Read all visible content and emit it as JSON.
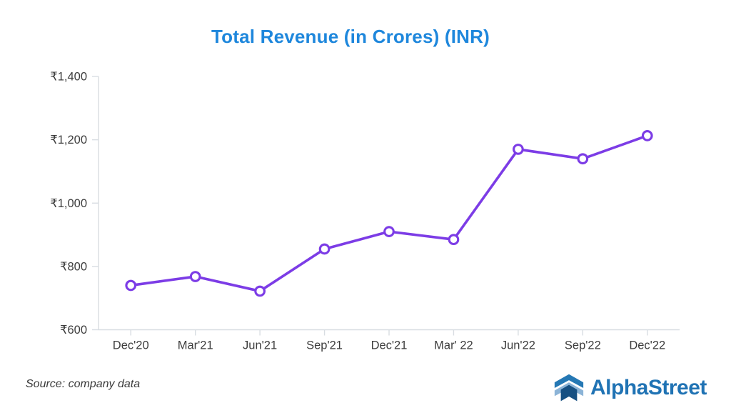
{
  "chart_data": {
    "type": "line",
    "title": "Total Revenue (in Crores) (INR)",
    "categories": [
      "Dec'20",
      "Mar'21",
      "Jun'21",
      "Sep'21",
      "Dec'21",
      "Mar' 22",
      "Jun'22",
      "Sep'22",
      "Dec'22"
    ],
    "series": [
      {
        "name": "Total Revenue",
        "values": [
          740,
          768,
          722,
          855,
          910,
          885,
          1170,
          1140,
          1213
        ]
      }
    ],
    "xlabel": "",
    "ylabel": "",
    "ylim": [
      600,
      1400
    ],
    "y_ticks": [
      {
        "value": 600,
        "label": "₹600"
      },
      {
        "value": 800,
        "label": "₹800"
      },
      {
        "value": 1000,
        "label": "₹1,000"
      },
      {
        "value": 1200,
        "label": "₹1,200"
      },
      {
        "value": 1400,
        "label": "₹1,400"
      }
    ],
    "grid": false,
    "legend": "none",
    "currency": "INR",
    "colors": {
      "line": "#7c3ce6",
      "marker_fill": "#ffffff",
      "title": "#1e87dc",
      "axis": "#d8dde2",
      "tick_text": "#3d3d3d"
    }
  },
  "footer": {
    "source": "Source: company data",
    "source_color": "#3a3a3a",
    "brand": "AlphaStreet",
    "brand_color": "#2073b4",
    "logo_colors": {
      "top_chevron": "#2578b4",
      "light_wings": "#8cb4d7",
      "dark_chevron": "#175082"
    }
  }
}
